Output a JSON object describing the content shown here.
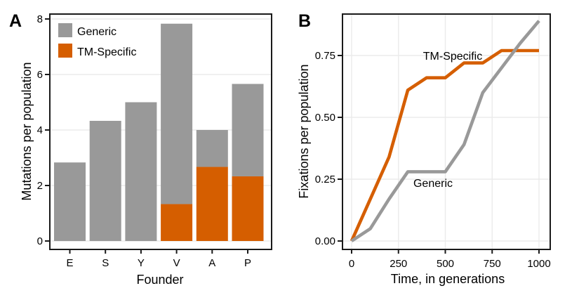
{
  "figure": {
    "panels": [
      {
        "letter": "A"
      },
      {
        "letter": "B"
      }
    ]
  },
  "colors": {
    "generic": "#999999",
    "tm_specific": "#D55E00",
    "grid": "#EBEBEB",
    "panel_border": "#1A1A1A",
    "text": "#000000"
  },
  "chart_data": [
    {
      "type": "bar",
      "panel": "A",
      "stacked": true,
      "categories": [
        "E",
        "S",
        "Y",
        "V",
        "A",
        "P"
      ],
      "series": [
        {
          "name": "TM-Specific",
          "color": "#D55E00",
          "values": [
            0,
            0,
            0,
            1.33,
            2.67,
            2.33
          ]
        },
        {
          "name": "Generic",
          "color": "#999999",
          "values": [
            2.83,
            4.33,
            5.0,
            6.5,
            1.33,
            3.33
          ]
        }
      ],
      "bar_totals": [
        2.83,
        4.33,
        5.0,
        7.83,
        4.0,
        5.67
      ],
      "title": "",
      "xlabel": "Founder",
      "ylabel": "Mutations per population",
      "ylim": [
        0,
        8
      ],
      "yticks": [
        0,
        2,
        4,
        6,
        8
      ],
      "grid": "horizontal-only",
      "legend": {
        "position": "inside-top-left",
        "entries": [
          {
            "label": "Generic",
            "color": "#999999"
          },
          {
            "label": "TM-Specific",
            "color": "#D55E00"
          }
        ]
      }
    },
    {
      "type": "line",
      "panel": "B",
      "x": [
        0,
        100,
        200,
        300,
        400,
        500,
        600,
        700,
        800,
        900,
        1000
      ],
      "series": [
        {
          "name": "TM-Specific",
          "inline_label": "TM-Specific",
          "color": "#D55E00",
          "values": [
            0.0,
            0.17,
            0.34,
            0.61,
            0.66,
            0.66,
            0.72,
            0.72,
            0.77,
            0.77,
            0.77
          ]
        },
        {
          "name": "Generic",
          "inline_label": "Generic",
          "color": "#999999",
          "values": [
            0.0,
            0.05,
            0.17,
            0.28,
            0.28,
            0.28,
            0.39,
            0.6,
            0.7,
            0.8,
            0.89
          ]
        }
      ],
      "title": "",
      "xlabel": "Time, in generations",
      "ylabel": "Fixations per population",
      "xlim": [
        0,
        1000
      ],
      "ylim": [
        0,
        0.9
      ],
      "xticks": [
        0,
        250,
        500,
        750,
        1000
      ],
      "ytick_labels": [
        "0.00",
        "0.25",
        "0.50",
        "0.75"
      ],
      "grid": "both",
      "legend_position": "inline-labels"
    }
  ]
}
